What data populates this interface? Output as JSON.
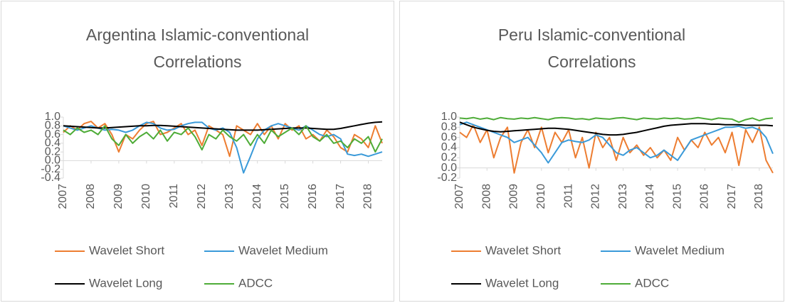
{
  "chart_data": [
    {
      "type": "line",
      "title": "Argentina Islamic-conventional Correlations",
      "x": [
        2007,
        2007.25,
        2007.5,
        2007.75,
        2008,
        2008.25,
        2008.5,
        2008.75,
        2009,
        2009.25,
        2009.5,
        2009.75,
        2010,
        2010.25,
        2010.5,
        2010.75,
        2011,
        2011.25,
        2011.5,
        2011.75,
        2012,
        2012.25,
        2012.5,
        2012.75,
        2013,
        2013.25,
        2013.5,
        2013.75,
        2014,
        2014.25,
        2014.5,
        2014.75,
        2015,
        2015.25,
        2015.5,
        2015.75,
        2016,
        2016.25,
        2016.5,
        2016.75,
        2017,
        2017.25,
        2017.5,
        2017.75,
        2018,
        2018.25,
        2018.5
      ],
      "xlim": [
        2007,
        2018.5
      ],
      "xticks": [
        2007,
        2008,
        2009,
        2010,
        2011,
        2012,
        2013,
        2014,
        2015,
        2016,
        2017,
        2018
      ],
      "ylim": [
        -0.4,
        1.0
      ],
      "yticks": [
        {
          "value": 1,
          "label": "1.0"
        },
        0.8,
        0.6,
        0.4,
        0.2,
        {
          "value": 0,
          "label": "0.0"
        },
        -0.2,
        -0.4
      ],
      "grid": false,
      "series": [
        {
          "name": "Wavelet Short",
          "color": "#ed7d31",
          "values": [
            0.65,
            0.8,
            0.7,
            0.85,
            0.9,
            0.75,
            0.85,
            0.6,
            0.2,
            0.6,
            0.5,
            0.7,
            0.85,
            0.9,
            0.6,
            0.65,
            0.75,
            0.85,
            0.6,
            0.7,
            0.35,
            0.8,
            0.7,
            0.6,
            0.1,
            0.8,
            0.7,
            0.6,
            0.85,
            0.6,
            0.8,
            0.5,
            0.85,
            0.7,
            0.8,
            0.5,
            0.6,
            0.45,
            0.7,
            0.55,
            0.3,
            0.2,
            0.6,
            0.5,
            0.3,
            0.8,
            0.4
          ]
        },
        {
          "name": "Wavelet Medium",
          "color": "#3a9ad9",
          "values": [
            0.8,
            0.75,
            0.7,
            0.75,
            0.8,
            0.75,
            0.7,
            0.72,
            0.7,
            0.65,
            0.7,
            0.8,
            0.88,
            0.85,
            0.75,
            0.7,
            0.72,
            0.8,
            0.85,
            0.88,
            0.88,
            0.75,
            0.7,
            0.75,
            0.65,
            0.3,
            -0.28,
            0.1,
            0.5,
            0.7,
            0.8,
            0.85,
            0.8,
            0.75,
            0.7,
            0.8,
            0.7,
            0.6,
            0.55,
            0.6,
            0.5,
            0.15,
            0.12,
            0.15,
            0.1,
            0.15,
            0.2
          ]
        },
        {
          "name": "Wavelet Long",
          "color": "#000000",
          "values": [
            0.8,
            0.79,
            0.78,
            0.77,
            0.76,
            0.75,
            0.75,
            0.76,
            0.77,
            0.78,
            0.79,
            0.8,
            0.8,
            0.81,
            0.81,
            0.8,
            0.79,
            0.78,
            0.77,
            0.76,
            0.75,
            0.74,
            0.73,
            0.72,
            0.71,
            0.7,
            0.7,
            0.7,
            0.7,
            0.71,
            0.72,
            0.73,
            0.74,
            0.75,
            0.75,
            0.75,
            0.74,
            0.73,
            0.72,
            0.72,
            0.74,
            0.77,
            0.8,
            0.83,
            0.86,
            0.88,
            0.89
          ]
        },
        {
          "name": "ADCC",
          "color": "#4eac38",
          "values": [
            0.7,
            0.6,
            0.75,
            0.65,
            0.7,
            0.6,
            0.8,
            0.5,
            0.35,
            0.6,
            0.4,
            0.55,
            0.65,
            0.5,
            0.7,
            0.45,
            0.65,
            0.6,
            0.75,
            0.55,
            0.25,
            0.6,
            0.5,
            0.7,
            0.55,
            0.45,
            0.6,
            0.35,
            0.6,
            0.4,
            0.7,
            0.55,
            0.65,
            0.75,
            0.6,
            0.8,
            0.55,
            0.45,
            0.6,
            0.4,
            0.45,
            0.3,
            0.5,
            0.4,
            0.55,
            0.2,
            0.5
          ]
        }
      ]
    },
    {
      "type": "line",
      "title": "Peru Islamic-conventional Correlations",
      "x": [
        2007,
        2007.25,
        2007.5,
        2007.75,
        2008,
        2008.25,
        2008.5,
        2008.75,
        2009,
        2009.25,
        2009.5,
        2009.75,
        2010,
        2010.25,
        2010.5,
        2010.75,
        2011,
        2011.25,
        2011.5,
        2011.75,
        2012,
        2012.25,
        2012.5,
        2012.75,
        2013,
        2013.25,
        2013.5,
        2013.75,
        2014,
        2014.25,
        2014.5,
        2014.75,
        2015,
        2015.25,
        2015.5,
        2015.75,
        2016,
        2016.25,
        2016.5,
        2016.75,
        2017,
        2017.25,
        2017.5,
        2017.75,
        2018,
        2018.25,
        2018.5
      ],
      "xlim": [
        2007,
        2018.5
      ],
      "xticks": [
        2007,
        2008,
        2009,
        2010,
        2011,
        2012,
        2013,
        2014,
        2015,
        2016,
        2017,
        2018
      ],
      "ylim": [
        -0.2,
        1.0
      ],
      "yticks": [
        {
          "value": 1,
          "label": "1.0"
        },
        0.8,
        0.6,
        0.4,
        0.2,
        {
          "value": 0,
          "label": "0.0"
        },
        -0.2
      ],
      "grid": false,
      "series": [
        {
          "name": "Wavelet Short",
          "color": "#ed7d31",
          "values": [
            0.7,
            0.6,
            0.85,
            0.5,
            0.75,
            0.2,
            0.6,
            0.8,
            -0.1,
            0.5,
            0.75,
            0.4,
            0.8,
            0.3,
            0.7,
            0.5,
            0.75,
            0.2,
            0.6,
            0.0,
            0.7,
            0.4,
            0.6,
            0.15,
            0.6,
            0.3,
            0.45,
            0.25,
            0.4,
            0.2,
            0.35,
            0.15,
            0.6,
            0.35,
            0.55,
            0.4,
            0.7,
            0.45,
            0.6,
            0.3,
            0.7,
            0.05,
            0.75,
            0.5,
            0.8,
            0.15,
            -0.1
          ]
        },
        {
          "name": "Wavelet Medium",
          "color": "#3a9ad9",
          "values": [
            0.85,
            0.9,
            0.85,
            0.8,
            0.75,
            0.7,
            0.65,
            0.6,
            0.5,
            0.55,
            0.6,
            0.45,
            0.3,
            0.1,
            0.3,
            0.5,
            0.55,
            0.52,
            0.5,
            0.55,
            0.65,
            0.6,
            0.45,
            0.3,
            0.25,
            0.35,
            0.4,
            0.3,
            0.2,
            0.25,
            0.35,
            0.25,
            0.15,
            0.35,
            0.55,
            0.6,
            0.65,
            0.7,
            0.75,
            0.8,
            0.8,
            0.82,
            0.78,
            0.8,
            0.75,
            0.6,
            0.28
          ]
        },
        {
          "name": "Wavelet Long",
          "color": "#000000",
          "values": [
            0.9,
            0.85,
            0.8,
            0.77,
            0.74,
            0.72,
            0.71,
            0.72,
            0.73,
            0.74,
            0.75,
            0.76,
            0.77,
            0.78,
            0.78,
            0.77,
            0.76,
            0.74,
            0.72,
            0.7,
            0.68,
            0.66,
            0.65,
            0.65,
            0.66,
            0.68,
            0.7,
            0.73,
            0.76,
            0.79,
            0.82,
            0.84,
            0.85,
            0.86,
            0.87,
            0.87,
            0.87,
            0.86,
            0.86,
            0.85,
            0.85,
            0.85,
            0.84,
            0.84,
            0.84,
            0.84,
            0.83
          ]
        },
        {
          "name": "ADCC",
          "color": "#4eac38",
          "values": [
            0.98,
            0.97,
            0.99,
            0.96,
            0.98,
            0.95,
            0.99,
            0.97,
            0.96,
            0.98,
            0.97,
            0.99,
            0.97,
            0.95,
            0.98,
            0.99,
            0.98,
            0.96,
            0.97,
            0.95,
            0.98,
            0.97,
            0.96,
            0.98,
            0.99,
            0.97,
            0.95,
            0.98,
            0.97,
            0.96,
            0.98,
            0.97,
            0.98,
            0.96,
            0.97,
            0.99,
            0.97,
            0.95,
            0.98,
            0.97,
            0.96,
            0.9,
            0.95,
            0.98,
            0.93,
            0.97,
            0.98
          ]
        }
      ]
    }
  ]
}
